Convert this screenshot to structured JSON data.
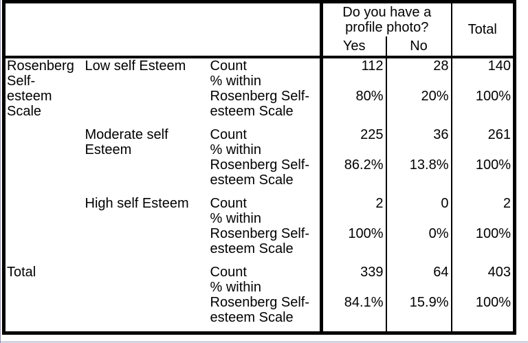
{
  "table": {
    "corner": "",
    "group_question": "Do you have a profile photo?",
    "col_yes": "Yes",
    "col_no": "No",
    "col_total": "Total",
    "row_group_label": "Rosenberg Self-esteem Scale",
    "count_label": "Count",
    "pct_within_label": "% within Rosenberg Self-esteem Scale",
    "total_row_label": "Total",
    "rows": [
      {
        "category": "Low self Esteem",
        "count": {
          "yes": "112",
          "no": "28",
          "total": "140"
        },
        "pct": {
          "yes": "80%",
          "no": "20%",
          "total": "100%"
        }
      },
      {
        "category": "Moderate self Esteem",
        "count": {
          "yes": "225",
          "no": "36",
          "total": "261"
        },
        "pct": {
          "yes": "86.2%",
          "no": "13.8%",
          "total": "100%"
        }
      },
      {
        "category": "High self Esteem",
        "count": {
          "yes": "2",
          "no": "0",
          "total": "2"
        },
        "pct": {
          "yes": "100%",
          "no": "0%",
          "total": "100%"
        }
      },
      {
        "category": "Total",
        "count": {
          "yes": "339",
          "no": "64",
          "total": "403"
        },
        "pct": {
          "yes": "84.1%",
          "no": "15.9%",
          "total": "100%"
        }
      }
    ]
  },
  "colors": {
    "border": "#000000",
    "background": "#ffffff",
    "edge_artifact_line": "#8f8fb4"
  },
  "chart_data": {
    "type": "table",
    "row_variable": "Rosenberg Self-esteem Scale",
    "column_variable": "Do you have a profile photo?",
    "columns": [
      "Yes",
      "No",
      "Total"
    ],
    "rows": [
      {
        "label": "Low self Esteem",
        "count": [
          112,
          28,
          140
        ],
        "pct_within": [
          "80%",
          "20%",
          "100%"
        ]
      },
      {
        "label": "Moderate self Esteem",
        "count": [
          225,
          36,
          261
        ],
        "pct_within": [
          "86.2%",
          "13.8%",
          "100%"
        ]
      },
      {
        "label": "High self Esteem",
        "count": [
          2,
          0,
          2
        ],
        "pct_within": [
          "100%",
          "0%",
          "100%"
        ]
      },
      {
        "label": "Total",
        "count": [
          339,
          64,
          403
        ],
        "pct_within": [
          "84.1%",
          "15.9%",
          "100%"
        ]
      }
    ]
  }
}
